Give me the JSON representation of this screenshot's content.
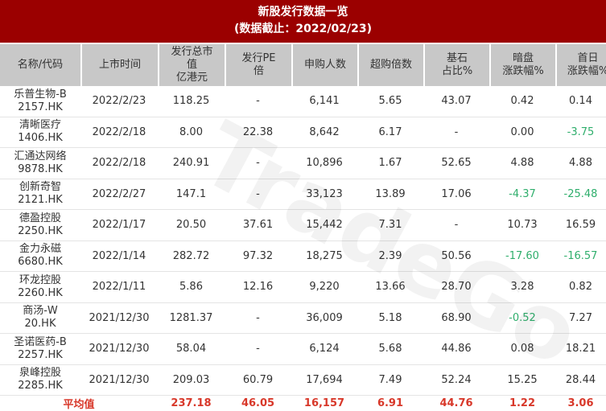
{
  "title": "新股发行数据一览",
  "subtitle": "(数据截止：2022/02/23)",
  "headers": [
    "名称/代码",
    "上市时间",
    "发行总市\n值\n亿港元",
    "发行PE\n倍",
    "申购人数",
    "超购倍数",
    "基石\n占比%",
    "暗盘\n涨跌幅%",
    "首日\n涨跌幅%"
  ],
  "rows": [
    [
      "乐普生物-B",
      "2157.HK",
      "2022/2/23",
      "118.25",
      "-",
      "6,141",
      "5.65",
      "43.07",
      "0.42",
      "0.14"
    ],
    [
      "清晰医疗",
      "1406.HK",
      "2022/2/18",
      "8.00",
      "22.38",
      "8,642",
      "6.17",
      "-",
      "0.00",
      "-3.75"
    ],
    [
      "汇通达网络",
      "9878.HK",
      "2022/2/18",
      "240.91",
      "-",
      "10,896",
      "1.67",
      "52.65",
      "4.88",
      "4.88"
    ],
    [
      "创新奇智",
      "2121.HK",
      "2022/2/27",
      "147.1",
      "-",
      "33,123",
      "13.89",
      "17.06",
      "-4.37",
      "-25.48"
    ],
    [
      "德盈控股",
      "2250.HK",
      "2022/1/17",
      "20.50",
      "37.61",
      "15,442",
      "7.31",
      "-",
      "10.73",
      "16.59"
    ],
    [
      "金力永磁",
      "6680.HK",
      "2022/1/14",
      "282.72",
      "97.32",
      "18,275",
      "2.39",
      "50.56",
      "-17.60",
      "-16.57"
    ],
    [
      "环龙控股",
      "2260.HK",
      "2022/1/11",
      "5.86",
      "12.16",
      "9,220",
      "13.66",
      "28.70",
      "3.28",
      "0.82"
    ],
    [
      "商汤-W",
      "20.HK",
      "2021/12/30",
      "1281.37",
      "-",
      "36,009",
      "5.18",
      "68.90",
      "-0.52",
      "7.27"
    ],
    [
      "圣诺医药-B",
      "2257.HK",
      "2021/12/30",
      "58.04",
      "-",
      "6,124",
      "5.68",
      "44.86",
      "0.08",
      "18.21"
    ],
    [
      "泉峰控股",
      "2285.HK",
      "2021/12/30",
      "209.03",
      "60.79",
      "17,694",
      "7.49",
      "52.24",
      "15.25",
      "28.44"
    ]
  ],
  "average": [
    "平均值",
    "237.18",
    "46.05",
    "16,157",
    "6.91",
    "44.76",
    "1.22",
    "3.06"
  ],
  "watermark": "TradeGo",
  "colors": {
    "title_bg": "#9b0000",
    "header_bg": "#c8c8c8",
    "negative": "#2fae6c",
    "average": "#d8382a"
  }
}
